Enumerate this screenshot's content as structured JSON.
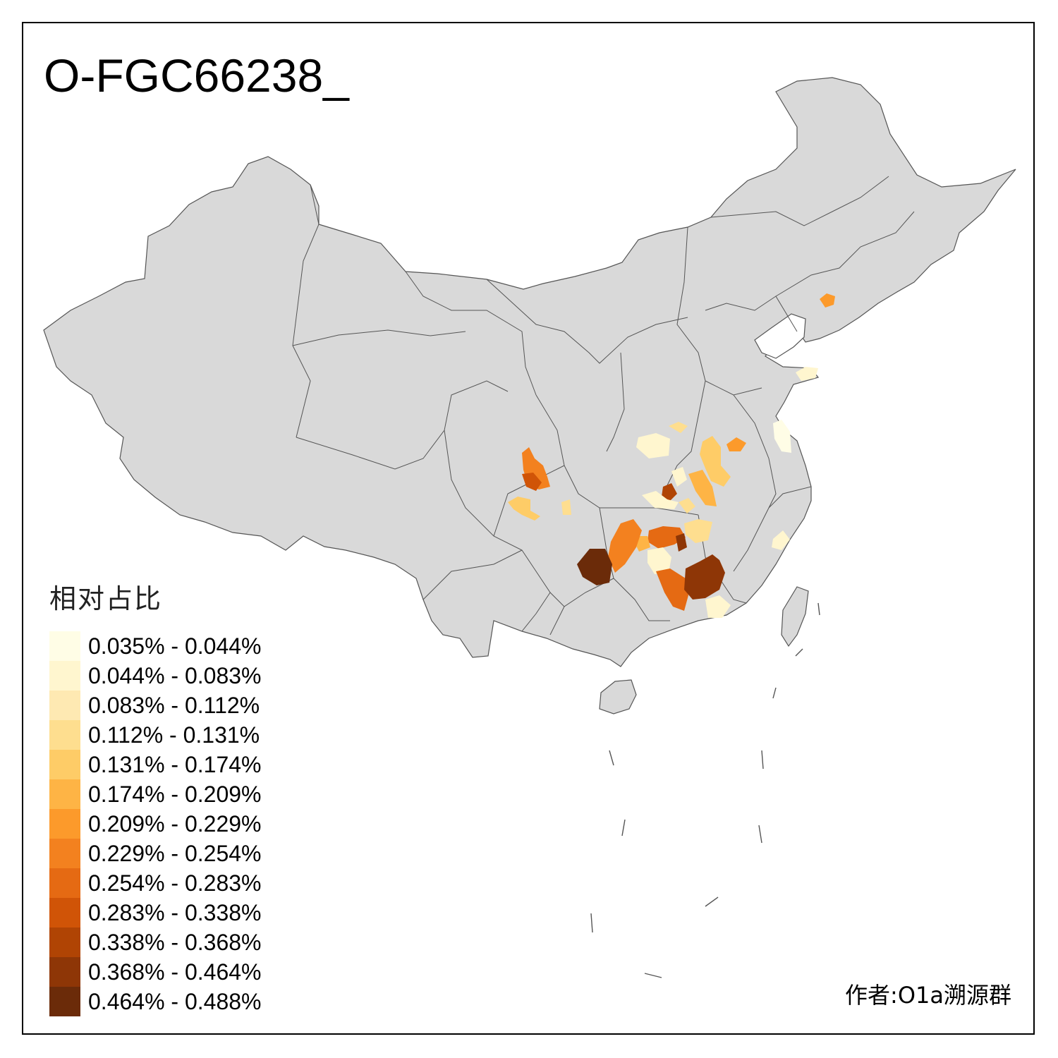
{
  "title": "O-FGC66238_",
  "legend": {
    "title": "相对占比",
    "bins": [
      {
        "label": "0.035% - 0.044%",
        "color": "#fffde6"
      },
      {
        "label": "0.044% - 0.083%",
        "color": "#fff6cf"
      },
      {
        "label": "0.083% - 0.112%",
        "color": "#fee9b2"
      },
      {
        "label": "0.112% - 0.131%",
        "color": "#fede8f"
      },
      {
        "label": "0.131% - 0.174%",
        "color": "#fecc67"
      },
      {
        "label": "0.174% - 0.209%",
        "color": "#feb445"
      },
      {
        "label": "0.209% - 0.229%",
        "color": "#fc9a2b"
      },
      {
        "label": "0.229% - 0.254%",
        "color": "#f3811f"
      },
      {
        "label": "0.254% - 0.283%",
        "color": "#e56a13"
      },
      {
        "label": "0.283% - 0.338%",
        "color": "#d05407"
      },
      {
        "label": "0.338% - 0.368%",
        "color": "#b04404"
      },
      {
        "label": "0.368% - 0.464%",
        "color": "#8e3606"
      },
      {
        "label": "0.464% - 0.488%",
        "color": "#6b2b09"
      }
    ]
  },
  "credit": "作者:O1a溯源群",
  "colors": {
    "land": "#d9d9d9",
    "border": "#555555",
    "frame": "#000000"
  }
}
